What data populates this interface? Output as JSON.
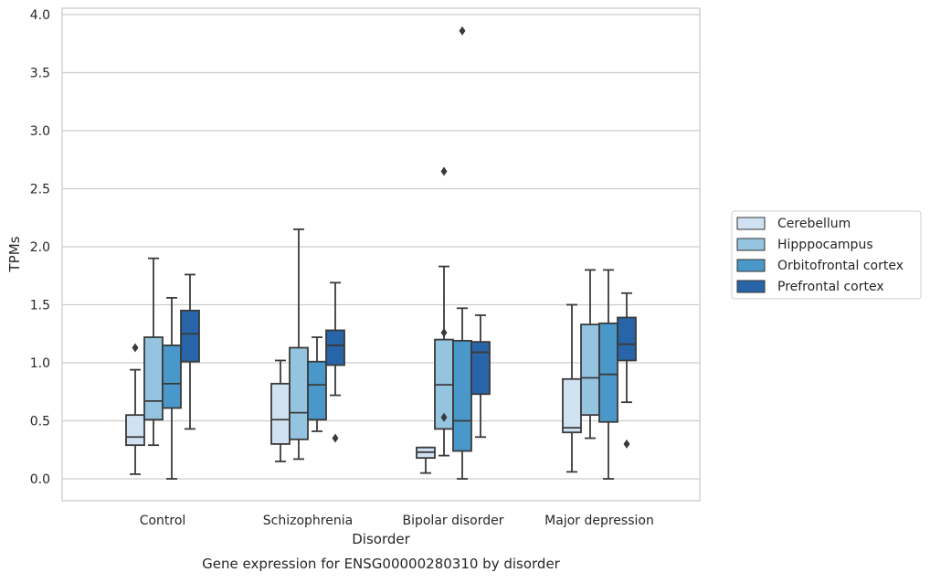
{
  "caption": "Gene expression for ENSG00000280310 by disorder",
  "chart_data": {
    "type": "box",
    "xlabel": "Disorder",
    "ylabel": "TPMs",
    "ylim": [
      -0.19,
      4.05
    ],
    "yticks": [
      "0.0",
      "0.5",
      "1.0",
      "1.5",
      "2.0",
      "2.5",
      "3.0",
      "3.5",
      "4.0"
    ],
    "grid": "horizontal",
    "legend_position": "right",
    "categories": [
      "Control",
      "Schizophrenia",
      "Bipolar disorder",
      "Major depression"
    ],
    "series": [
      {
        "name": "Cerebellum",
        "color": "#d0e1f2",
        "boxes": [
          {
            "whisker_low": 0.04,
            "q1": 0.29,
            "median": 0.36,
            "q3": 0.55,
            "whisker_high": 0.94,
            "outliers": [
              1.13
            ]
          },
          {
            "whisker_low": 0.15,
            "q1": 0.3,
            "median": 0.51,
            "q3": 0.82,
            "whisker_high": 1.02,
            "outliers": []
          },
          {
            "whisker_low": 0.05,
            "q1": 0.18,
            "median": 0.23,
            "q3": 0.27,
            "whisker_high": 0.27,
            "outliers": []
          },
          {
            "whisker_low": 0.06,
            "q1": 0.4,
            "median": 0.44,
            "q3": 0.86,
            "whisker_high": 1.5,
            "outliers": []
          }
        ]
      },
      {
        "name": "Hipppocampus",
        "color": "#94c4df",
        "boxes": [
          {
            "whisker_low": 0.29,
            "q1": 0.51,
            "median": 0.67,
            "q3": 1.22,
            "whisker_high": 1.9,
            "outliers": []
          },
          {
            "whisker_low": 0.17,
            "q1": 0.34,
            "median": 0.57,
            "q3": 1.13,
            "whisker_high": 2.15,
            "outliers": []
          },
          {
            "whisker_low": 0.2,
            "q1": 0.43,
            "median": 0.81,
            "q3": 1.2,
            "whisker_high": 1.83,
            "outliers": [
              0.53,
              1.26,
              2.65
            ]
          },
          {
            "whisker_low": 0.35,
            "q1": 0.55,
            "median": 0.87,
            "q3": 1.33,
            "whisker_high": 1.8,
            "outliers": []
          }
        ]
      },
      {
        "name": "Orbitofrontal cortex",
        "color": "#4a98c9",
        "boxes": [
          {
            "whisker_low": 0.0,
            "q1": 0.61,
            "median": 0.82,
            "q3": 1.15,
            "whisker_high": 1.56,
            "outliers": []
          },
          {
            "whisker_low": 0.41,
            "q1": 0.51,
            "median": 0.81,
            "q3": 1.01,
            "whisker_high": 1.22,
            "outliers": []
          },
          {
            "whisker_low": 0.0,
            "q1": 0.24,
            "median": 0.5,
            "q3": 1.19,
            "whisker_high": 1.47,
            "outliers": [
              3.86
            ]
          },
          {
            "whisker_low": 0.0,
            "q1": 0.49,
            "median": 0.9,
            "q3": 1.34,
            "whisker_high": 1.8,
            "outliers": []
          }
        ]
      },
      {
        "name": "Prefrontal cortex",
        "color": "#2865a8",
        "boxes": [
          {
            "whisker_low": 0.43,
            "q1": 1.01,
            "median": 1.25,
            "q3": 1.45,
            "whisker_high": 1.76,
            "outliers": []
          },
          {
            "whisker_low": 0.72,
            "q1": 0.98,
            "median": 1.15,
            "q3": 1.28,
            "whisker_high": 1.69,
            "outliers": [
              0.35
            ]
          },
          {
            "whisker_low": 0.36,
            "q1": 0.73,
            "median": 1.09,
            "q3": 1.18,
            "whisker_high": 1.41,
            "outliers": []
          },
          {
            "whisker_low": 0.66,
            "q1": 1.02,
            "median": 1.16,
            "q3": 1.39,
            "whisker_high": 1.6,
            "outliers": [
              0.3
            ]
          }
        ]
      }
    ]
  }
}
